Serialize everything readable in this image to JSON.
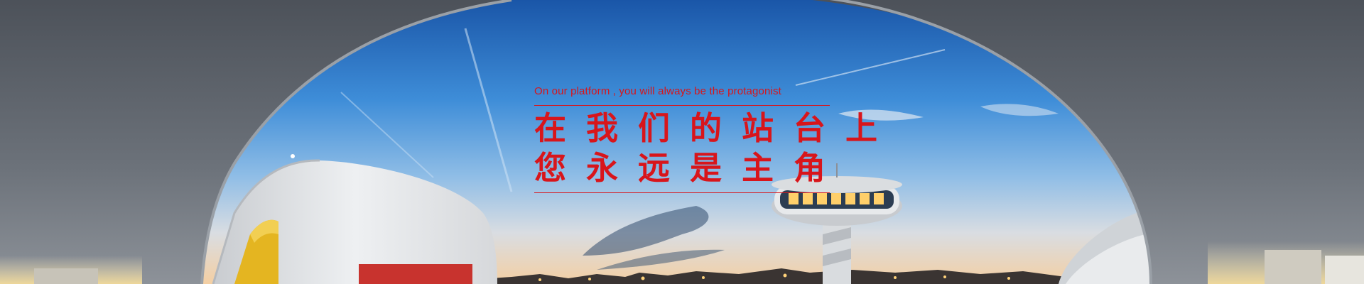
{
  "banner": {
    "tagline_en": "On our platform , you will always be the protagonist",
    "headline_line1": "在我们的站台上",
    "headline_line2": "您永远是主角"
  },
  "colors": {
    "accent": "#d8151b",
    "sky_top": "#1d5fae",
    "sky_mid": "#4f9be0",
    "horizon": "#f2d3ae",
    "concrete": "#5a6068"
  }
}
